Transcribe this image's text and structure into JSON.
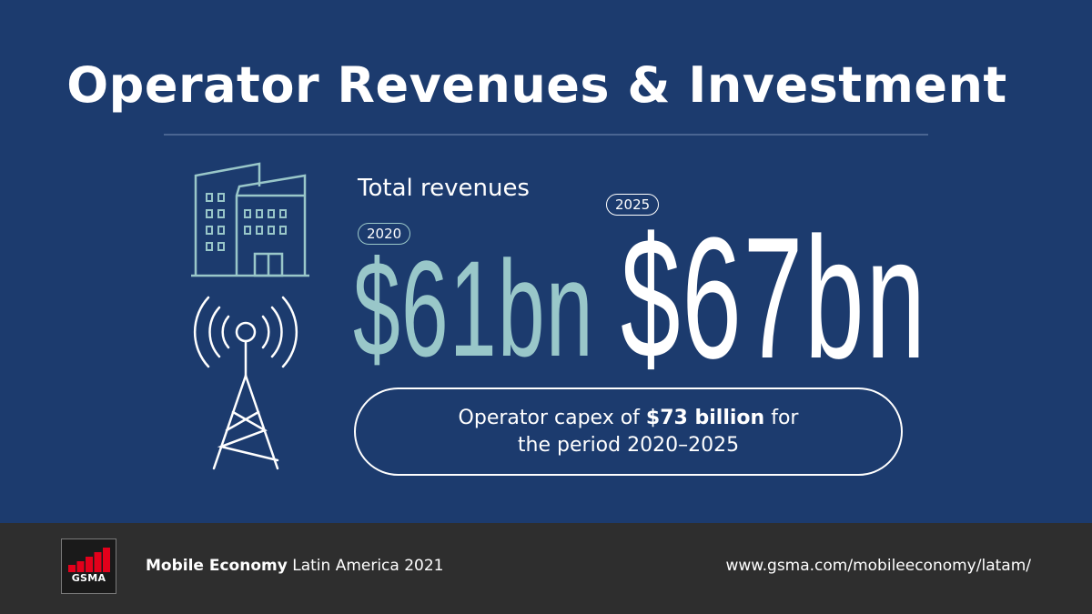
{
  "header": {
    "title": "Operator Revenues & Investment"
  },
  "revenues": {
    "label": "Total revenues",
    "year_2020": "2020",
    "value_2020": "$61bn",
    "year_2025": "2025",
    "value_2025": "$67bn"
  },
  "capex": {
    "prefix": "Operator capex of ",
    "amount": "$73 billion",
    "suffix": " for",
    "line2": "the period 2020–2025"
  },
  "icons": {
    "building": "office-building-icon",
    "tower": "cell-tower-icon",
    "logo": "gsma-logo"
  },
  "footer": {
    "logo_text": "GSMA",
    "publication_bold": "Mobile Economy",
    "publication_rest": " Latin America 2021",
    "url": "www.gsma.com/mobileeconomy/latam/"
  },
  "colors": {
    "background": "#1c3b6e",
    "accent_teal": "#99c7c9",
    "footer_bg": "#2e2e2e",
    "logo_red": "#e3001b"
  }
}
